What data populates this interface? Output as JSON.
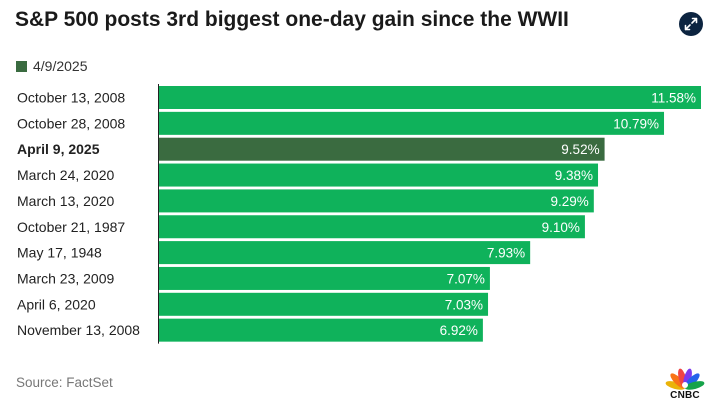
{
  "title": "S&P 500 posts 3rd biggest one-day gain since the WWII",
  "legend": {
    "label": "4/9/2025",
    "color": "#3a6b40"
  },
  "source": "Source: FactSet",
  "logo": {
    "text": "CNBC"
  },
  "expand_icon": "expand-icon",
  "colors": {
    "bar": "#0fb25b",
    "highlight": "#3a6b40",
    "value_text": "#ffffff",
    "axis_line": "#222222"
  },
  "chart_data": {
    "type": "bar",
    "orientation": "horizontal",
    "title": "S&P 500 posts 3rd biggest one-day gain since the WWII",
    "xlabel": "",
    "ylabel": "",
    "xlim": [
      0,
      11.58
    ],
    "grid": false,
    "legend": "top-left",
    "categories": [
      "October 13, 2008",
      "October 28, 2008",
      "April 9, 2025",
      "March 24, 2020",
      "March 13, 2020",
      "October 21, 1987",
      "May 17, 1948",
      "March 23, 2009",
      "April 6, 2020",
      "November 13, 2008"
    ],
    "values": [
      11.58,
      10.79,
      9.52,
      9.38,
      9.29,
      9.1,
      7.93,
      7.07,
      7.03,
      6.92
    ],
    "value_labels": [
      "11.58%",
      "10.79%",
      "9.52%",
      "9.38%",
      "9.29%",
      "9.10%",
      "7.93%",
      "7.07%",
      "7.03%",
      "6.92%"
    ],
    "highlight_index": 2
  }
}
